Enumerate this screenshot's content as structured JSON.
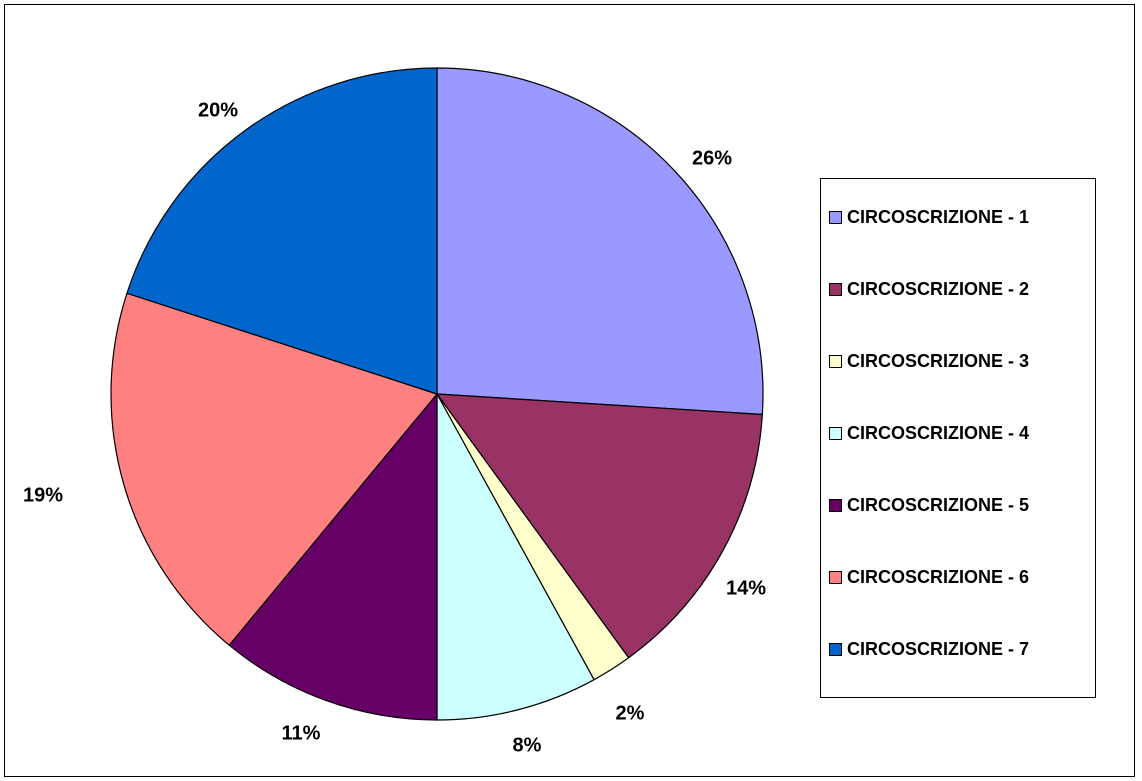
{
  "chart_data": {
    "type": "pie",
    "title": "",
    "categories": [
      "CIRCOSCRIZIONE - 1",
      "CIRCOSCRIZIONE - 2",
      "CIRCOSCRIZIONE - 3",
      "CIRCOSCRIZIONE - 4",
      "CIRCOSCRIZIONE - 5",
      "CIRCOSCRIZIONE - 6",
      "CIRCOSCRIZIONE - 7"
    ],
    "values": [
      26,
      14,
      2,
      8,
      11,
      19,
      20
    ],
    "data_labels": [
      "26%",
      "14%",
      "2%",
      "8%",
      "11%",
      "19%",
      "20%"
    ],
    "colors": [
      "#9999FF",
      "#993366",
      "#FFFFCC",
      "#CCFFFF",
      "#660066",
      "#FF8080",
      "#0066CC"
    ],
    "start_angle_deg": 0,
    "direction": "clockwise",
    "legend": {
      "position": "right"
    }
  }
}
